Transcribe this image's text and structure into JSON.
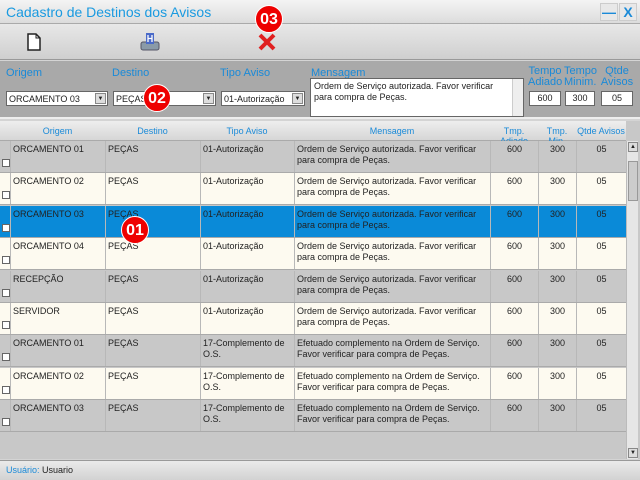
{
  "window": {
    "title": "Cadastro de Destinos dos Avisos",
    "minimize": "—",
    "close": "X"
  },
  "toolbar": {
    "new_icon": "new-document-icon",
    "save_icon": "save-disk-icon",
    "delete_icon": "delete-x-icon"
  },
  "filters": {
    "origem_label": "Origem",
    "origem_value": "ORCAMENTO 03",
    "destino_label": "Destino",
    "destino_value": "PEÇAS",
    "tipo_label": "Tipo Aviso",
    "tipo_value": "01-Autorização",
    "mensagem_label": "Mensagem",
    "mensagem_value": "Ordem de Serviço autorizada. Favor verificar para compra de Peças.",
    "tempo_adiado_label1": "Tempo",
    "tempo_adiado_label2": "Adiado",
    "tempo_adiado_value": "600",
    "tempo_minim_label1": "Tempo",
    "tempo_minim_label2": "Minim.",
    "tempo_minim_value": "300",
    "qtde_label1": "Qtde",
    "qtde_label2": "Avisos",
    "qtde_value": "05"
  },
  "grid": {
    "columns": [
      "Origem",
      "Destino",
      "Tipo Aviso",
      "Mensagem",
      "Tmp. Adiado",
      "Tmp. Min.",
      "Qtde Avisos"
    ],
    "selected_index": 2,
    "rows": [
      [
        "ORCAMENTO 01",
        "PEÇAS",
        "01-Autorização",
        "Ordem de Serviço autorizada. Favor verificar para compra de Peças.",
        "600",
        "300",
        "05"
      ],
      [
        "ORCAMENTO 02",
        "PEÇAS",
        "01-Autorização",
        "Ordem de Serviço autorizada. Favor verificar para compra de Peças.",
        "600",
        "300",
        "05"
      ],
      [
        "ORCAMENTO 03",
        "PEÇAS",
        "01-Autorização",
        "Ordem de Serviço autorizada. Favor verificar para compra de Peças.",
        "600",
        "300",
        "05"
      ],
      [
        "ORCAMENTO 04",
        "PEÇAS",
        "01-Autorização",
        "Ordem de Serviço autorizada. Favor verificar para compra de Peças.",
        "600",
        "300",
        "05"
      ],
      [
        "RECEPÇÃO",
        "PEÇAS",
        "01-Autorização",
        "Ordem de Serviço autorizada. Favor verificar para compra de Peças.",
        "600",
        "300",
        "05"
      ],
      [
        "SERVIDOR",
        "PEÇAS",
        "01-Autorização",
        "Ordem de Serviço autorizada. Favor verificar para compra de Peças.",
        "600",
        "300",
        "05"
      ],
      [
        "ORCAMENTO 01",
        "PEÇAS",
        "17-Complemento de O.S.",
        "Efetuado complemento na Ordem de Serviço. Favor verificar para compra de Peças.",
        "600",
        "300",
        "05"
      ],
      [
        "ORCAMENTO 02",
        "PEÇAS",
        "17-Complemento de O.S.",
        "Efetuado complemento na Ordem de Serviço. Favor verificar para compra de Peças.",
        "600",
        "300",
        "05"
      ],
      [
        "ORCAMENTO 03",
        "PEÇAS",
        "17-Complemento de O.S.",
        "Efetuado complemento na Ordem de Serviço. Favor verificar para compra de Peças.",
        "600",
        "300",
        "05"
      ]
    ]
  },
  "status": {
    "label": "Usuário:",
    "value": "Usuario"
  },
  "annotations": [
    "01",
    "02",
    "03"
  ],
  "colors": {
    "accent": "#1a8ad8",
    "selected_row": "#0a8ad8",
    "row_gray": "#c8c8c8",
    "row_cream": "#fdfaf0",
    "badge": "#e00000"
  }
}
